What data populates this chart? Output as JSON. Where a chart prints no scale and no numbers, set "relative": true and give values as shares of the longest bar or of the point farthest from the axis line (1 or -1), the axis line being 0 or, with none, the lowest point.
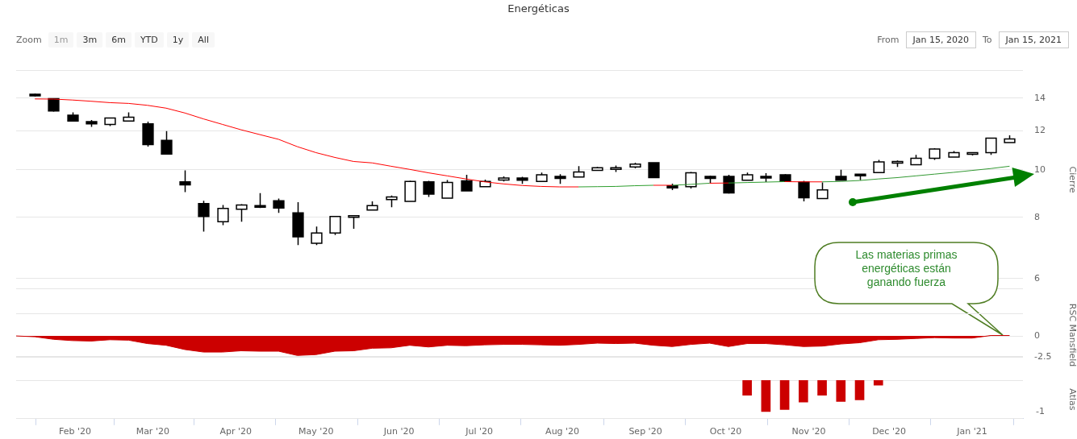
{
  "chart_data": [
    {
      "type": "other",
      "title": "Energéticas",
      "annotations": [
        "Zoom",
        "1m",
        "3m",
        "6m",
        "YTD",
        "1y",
        "All",
        "From",
        "Jan 15, 2020",
        "To",
        "Jan 15, 2021"
      ]
    },
    {
      "type": "candlestick",
      "xlim": [
        "2020-01-10",
        "2021-01-20"
      ],
      "ylim": [
        5.7,
        16
      ],
      "yticks": [
        6,
        8,
        10,
        12,
        14
      ],
      "log": "y",
      "ylabel": "Cierre",
      "grid": "y",
      "tick_labels": "y",
      "x": [
        "2020-01-17",
        "2020-01-24",
        "2020-01-31",
        "2020-02-07",
        "2020-02-14",
        "2020-02-21",
        "2020-02-28",
        "2020-03-06",
        "2020-03-13",
        "2020-03-20",
        "2020-03-27",
        "2020-04-03",
        "2020-04-10",
        "2020-04-17",
        "2020-04-24",
        "2020-05-01",
        "2020-05-08",
        "2020-05-15",
        "2020-05-22",
        "2020-05-29",
        "2020-06-05",
        "2020-06-12",
        "2020-06-19",
        "2020-06-26",
        "2020-07-03",
        "2020-07-10",
        "2020-07-17",
        "2020-07-24",
        "2020-07-31",
        "2020-08-07",
        "2020-08-14",
        "2020-08-21",
        "2020-08-28",
        "2020-09-04",
        "2020-09-11",
        "2020-09-18",
        "2020-09-25",
        "2020-10-02",
        "2020-10-09",
        "2020-10-16",
        "2020-10-23",
        "2020-10-30",
        "2020-11-06",
        "2020-11-13",
        "2020-11-20",
        "2020-11-27",
        "2020-12-04",
        "2020-12-11",
        "2020-12-18",
        "2020-12-25",
        "2021-01-01",
        "2021-01-08",
        "2021-01-15"
      ],
      "ohlc": [
        [
          14.26,
          14.3,
          14.12,
          14.16
        ],
        [
          13.97,
          14.0,
          13.15,
          13.19
        ],
        [
          12.93,
          13.1,
          12.54,
          12.58
        ],
        [
          12.54,
          12.63,
          12.24,
          12.41
        ],
        [
          12.37,
          12.76,
          12.28,
          12.76
        ],
        [
          12.58,
          13.1,
          12.58,
          12.8
        ],
        [
          12.41,
          12.54,
          11.15,
          11.26
        ],
        [
          11.48,
          12.0,
          10.77,
          10.77
        ],
        [
          9.45,
          9.97,
          9.01,
          9.32
        ],
        [
          8.53,
          8.65,
          7.48,
          8.03
        ],
        [
          7.84,
          8.48,
          7.71,
          8.34
        ],
        [
          8.31,
          8.51,
          7.84,
          8.48
        ],
        [
          8.45,
          8.96,
          8.36,
          8.42
        ],
        [
          8.65,
          8.74,
          8.17,
          8.36
        ],
        [
          8.17,
          8.59,
          7.02,
          7.3
        ],
        [
          7.08,
          7.66,
          7.02,
          7.43
        ],
        [
          7.43,
          8.03,
          7.36,
          8.03
        ],
        [
          8.03,
          8.08,
          7.58,
          8.06
        ],
        [
          8.28,
          8.62,
          8.28,
          8.45
        ],
        [
          8.7,
          8.86,
          8.39,
          8.8
        ],
        [
          8.62,
          9.5,
          8.62,
          9.47
        ],
        [
          9.45,
          9.5,
          8.8,
          8.92
        ],
        [
          8.75,
          9.53,
          8.75,
          9.42
        ],
        [
          9.5,
          9.77,
          9.06,
          9.06
        ],
        [
          9.24,
          9.55,
          9.24,
          9.47
        ],
        [
          9.53,
          9.7,
          9.47,
          9.62
        ],
        [
          9.62,
          9.68,
          9.36,
          9.52
        ],
        [
          9.47,
          9.87,
          9.44,
          9.77
        ],
        [
          9.7,
          9.8,
          9.36,
          9.6
        ],
        [
          9.67,
          10.17,
          9.67,
          9.9
        ],
        [
          9.97,
          10.14,
          9.97,
          10.1
        ],
        [
          10.03,
          10.2,
          9.9,
          10.1
        ],
        [
          10.14,
          10.34,
          10.07,
          10.27
        ],
        [
          10.34,
          10.34,
          9.64,
          9.64
        ],
        [
          9.27,
          9.37,
          9.09,
          9.19
        ],
        [
          9.24,
          9.9,
          9.16,
          9.86
        ],
        [
          9.7,
          9.73,
          9.38,
          9.6
        ],
        [
          9.7,
          9.77,
          8.95,
          8.97
        ],
        [
          9.52,
          9.87,
          9.52,
          9.77
        ],
        [
          9.7,
          9.84,
          9.44,
          9.66
        ],
        [
          9.77,
          9.8,
          9.47,
          9.47
        ],
        [
          9.44,
          9.5,
          8.62,
          8.77
        ],
        [
          8.74,
          9.42,
          8.74,
          9.1
        ],
        [
          9.7,
          10.0,
          9.52,
          9.52
        ],
        [
          9.8,
          9.8,
          9.52,
          9.74
        ],
        [
          9.87,
          10.48,
          9.87,
          10.38
        ],
        [
          10.33,
          10.45,
          10.14,
          10.4
        ],
        [
          10.24,
          10.73,
          10.24,
          10.56
        ],
        [
          10.56,
          11.07,
          10.48,
          11.03
        ],
        [
          10.62,
          10.92,
          10.62,
          10.84
        ],
        [
          10.8,
          10.86,
          10.7,
          10.84
        ],
        [
          10.84,
          11.6,
          10.73,
          11.6
        ],
        [
          11.37,
          11.76,
          11.37,
          11.56
        ]
      ],
      "series": [
        {
          "type": "line",
          "color": "#ff0000",
          "values": [
            13.95,
            13.94,
            13.88,
            13.8,
            13.71,
            13.66,
            13.54,
            13.36,
            13.06,
            12.7,
            12.38,
            12.07,
            11.8,
            11.54,
            11.15,
            10.84,
            10.6,
            10.4,
            10.33,
            10.17,
            10.02,
            9.86,
            9.72,
            9.58,
            9.45,
            9.36,
            9.29,
            9.25,
            9.23,
            9.23,
            null,
            null,
            null,
            9.3,
            9.3,
            null,
            9.39,
            9.4,
            null,
            null,
            9.46,
            9.45,
            9.45,
            null,
            null,
            null,
            null,
            null,
            null,
            null,
            null,
            null,
            null
          ]
        },
        {
          "type": "line",
          "color": "#2e9e2e",
          "values": [
            null,
            null,
            null,
            null,
            null,
            null,
            null,
            null,
            null,
            null,
            null,
            null,
            null,
            null,
            null,
            null,
            null,
            null,
            null,
            null,
            null,
            null,
            null,
            null,
            null,
            null,
            null,
            null,
            null,
            9.23,
            9.24,
            9.25,
            9.28,
            9.3,
            null,
            null,
            null,
            9.4,
            9.42,
            9.44,
            9.46,
            null,
            null,
            null,
            null,
            null,
            null,
            null,
            null,
            null,
            null,
            null,
            null
          ]
        },
        {
          "type": "line",
          "color": "#339933",
          "values": [
            null,
            null,
            null,
            null,
            null,
            null,
            null,
            null,
            null,
            null,
            null,
            null,
            null,
            null,
            null,
            null,
            null,
            null,
            null,
            null,
            null,
            null,
            null,
            null,
            null,
            null,
            null,
            null,
            null,
            null,
            null,
            null,
            null,
            null,
            9.3,
            9.34,
            9.39,
            null,
            null,
            null,
            null,
            null,
            9.45,
            9.47,
            9.51,
            9.58,
            9.64,
            9.72,
            9.8,
            9.88,
            9.97,
            10.06,
            10.17
          ]
        }
      ],
      "annotations": [
        "Las materias primas energéticas están ganando fuerza"
      ]
    },
    {
      "type": "area",
      "color": "#cc0000",
      "xlim": [
        "2020-01-10",
        "2021-01-20"
      ],
      "ylim": [
        -2.5,
        2.7
      ],
      "yticks": [
        -2.5,
        0
      ],
      "ylabel": "RSC Mansfield",
      "grid": "y",
      "tick_labels": "y",
      "x": [
        "2020-01-10",
        "2020-01-17",
        "2020-01-24",
        "2020-01-31",
        "2020-02-07",
        "2020-02-14",
        "2020-02-21",
        "2020-02-28",
        "2020-03-06",
        "2020-03-13",
        "2020-03-20",
        "2020-03-27",
        "2020-04-03",
        "2020-04-10",
        "2020-04-17",
        "2020-04-24",
        "2020-05-01",
        "2020-05-08",
        "2020-05-15",
        "2020-05-22",
        "2020-05-29",
        "2020-06-05",
        "2020-06-12",
        "2020-06-19",
        "2020-06-26",
        "2020-07-03",
        "2020-07-10",
        "2020-07-17",
        "2020-07-24",
        "2020-07-31",
        "2020-08-07",
        "2020-08-14",
        "2020-08-21",
        "2020-08-28",
        "2020-09-04",
        "2020-09-11",
        "2020-09-18",
        "2020-09-25",
        "2020-10-02",
        "2020-10-09",
        "2020-10-16",
        "2020-10-23",
        "2020-10-30",
        "2020-11-06",
        "2020-11-13",
        "2020-11-20",
        "2020-11-27",
        "2020-12-04",
        "2020-12-11",
        "2020-12-18",
        "2020-12-25",
        "2021-01-01",
        "2021-01-08",
        "2021-01-15"
      ],
      "values": [
        0,
        -0.1,
        -0.4,
        -0.55,
        -0.6,
        -0.45,
        -0.5,
        -0.9,
        -1.1,
        -1.6,
        -1.9,
        -1.9,
        -1.75,
        -1.8,
        -1.8,
        -2.3,
        -2.2,
        -1.8,
        -1.75,
        -1.45,
        -1.4,
        -1.1,
        -1.3,
        -1.1,
        -1.15,
        -1.05,
        -1.0,
        -1.0,
        -1.05,
        -1.1,
        -1.0,
        -0.85,
        -0.9,
        -0.85,
        -1.1,
        -1.25,
        -1.0,
        -0.85,
        -1.25,
        -0.9,
        -0.9,
        -1.05,
        -1.25,
        -1.2,
        -0.95,
        -0.8,
        -0.45,
        -0.4,
        -0.3,
        -0.2,
        -0.25,
        -0.25,
        0.05,
        0.05
      ]
    },
    {
      "type": "bar",
      "color": "#cc0000",
      "xlim": [
        "2020-01-10",
        "2021-01-20"
      ],
      "relative": true,
      "ylabel": "Atlas",
      "annotations": [
        "-1"
      ],
      "xticks": [
        {
          "value": "2020-02-01",
          "label": "Feb '20"
        },
        {
          "value": "2020-03-01",
          "label": "Mar '20"
        },
        {
          "value": "2020-04-01",
          "label": "Apr '20"
        },
        {
          "value": "2020-05-01",
          "label": "May '20"
        },
        {
          "value": "2020-06-01",
          "label": "Jun '20"
        },
        {
          "value": "2020-07-01",
          "label": "Jul '20"
        },
        {
          "value": "2020-08-01",
          "label": "Aug '20"
        },
        {
          "value": "2020-09-01",
          "label": "Sep '20"
        },
        {
          "value": "2020-10-01",
          "label": "Oct '20"
        },
        {
          "value": "2020-11-01",
          "label": "Nov '20"
        },
        {
          "value": "2020-12-01",
          "label": "Dec '20"
        },
        {
          "value": "2021-01-01",
          "label": "Jan '21"
        }
      ],
      "x": [
        "2020-10-09",
        "2020-10-16",
        "2020-10-23",
        "2020-10-30",
        "2020-11-06",
        "2020-11-13",
        "2020-11-20",
        "2020-11-27"
      ],
      "values": [
        -0.48,
        -1,
        -0.94,
        -0.7,
        -0.48,
        -0.68,
        -0.63,
        -0.16
      ]
    }
  ]
}
